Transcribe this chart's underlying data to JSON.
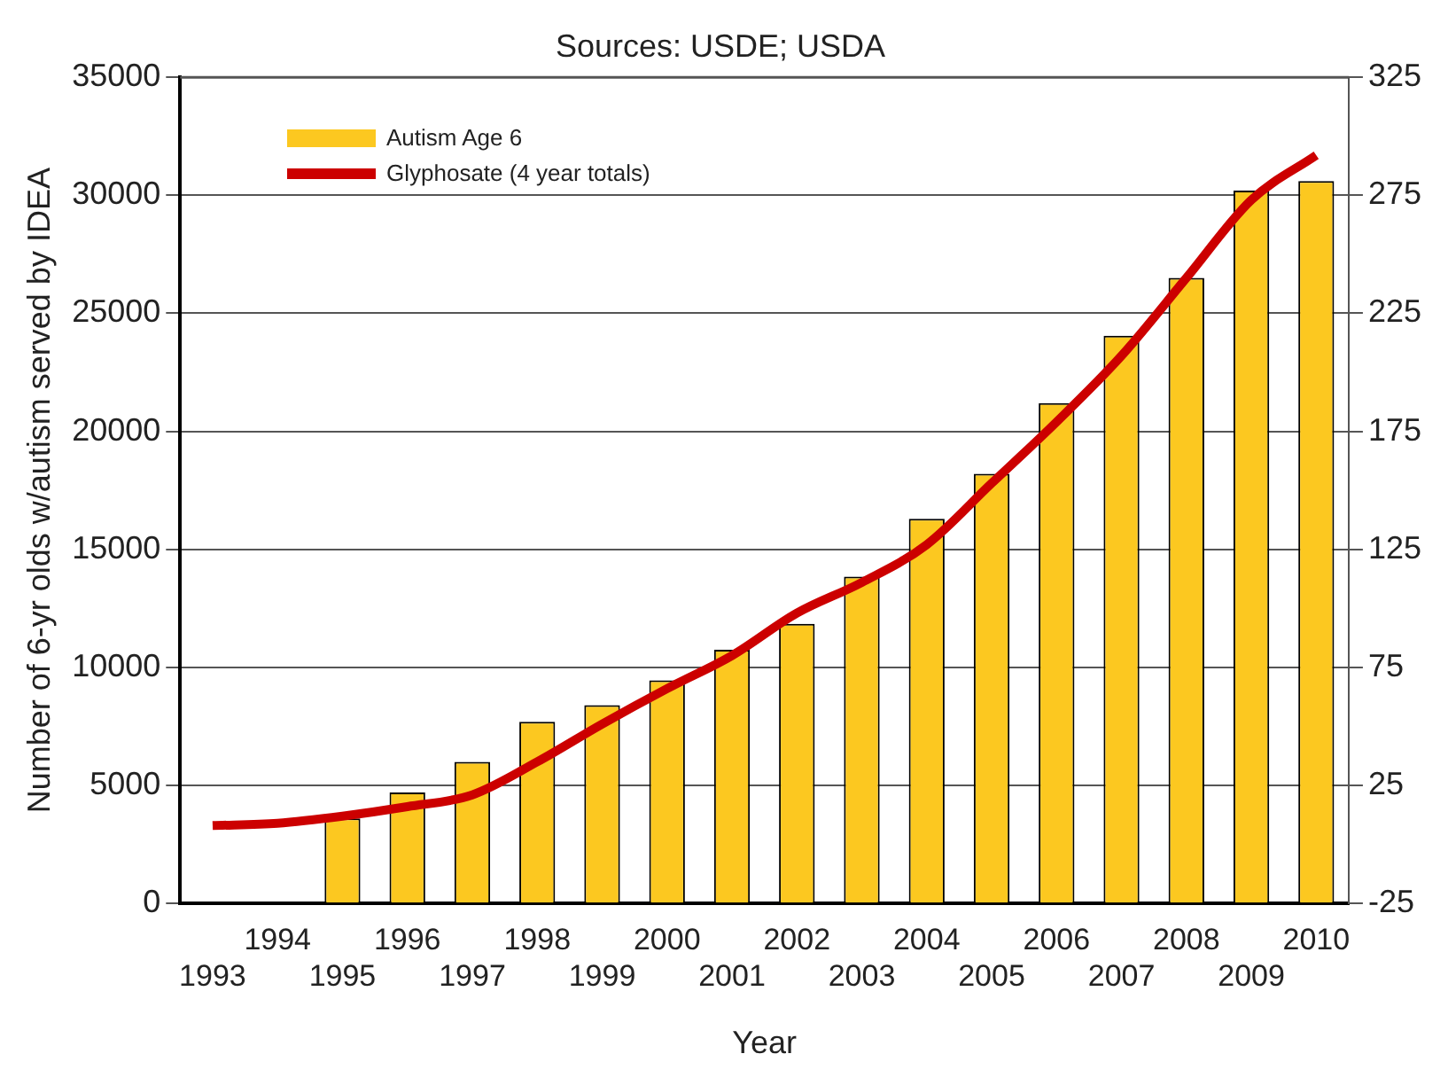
{
  "chart_data": {
    "type": "bar",
    "title": "Sources: USDE; USDA",
    "xlabel": "Year",
    "ylabel": "Number of 6-yr olds w/autism served by IDEA",
    "categories": [
      "1993",
      "1994",
      "1995",
      "1996",
      "1997",
      "1998",
      "1999",
      "2000",
      "2001",
      "2002",
      "2003",
      "2004",
      "2005",
      "2006",
      "2007",
      "2008",
      "2009",
      "2010"
    ],
    "series": [
      {
        "name": "Autism Age 6",
        "color": "#fcc820",
        "values": [
          null,
          null,
          3600,
          4700,
          6000,
          7700,
          8400,
          9450,
          10750,
          11850,
          13850,
          16300,
          18200,
          21200,
          24050,
          26500,
          30200,
          30600
        ]
      },
      {
        "name": "Glyphosate (4 year totals)",
        "type": "line",
        "axis": "y2",
        "color": "#cc0000",
        "values": [
          8,
          9,
          12,
          16,
          21,
          35,
          51,
          66,
          80,
          98,
          111,
          127,
          153,
          179,
          207,
          240,
          273,
          292
        ]
      }
    ],
    "ylim": [
      0,
      35000
    ],
    "yticks": [
      0,
      5000,
      10000,
      15000,
      20000,
      25000,
      30000,
      35000
    ],
    "y2lim": [
      -25,
      325
    ],
    "y2ticks": [
      -25,
      25,
      75,
      125,
      175,
      225,
      275,
      325
    ],
    "grid": "y",
    "legend": "top left",
    "marker": "none",
    "line_style": "solid"
  }
}
